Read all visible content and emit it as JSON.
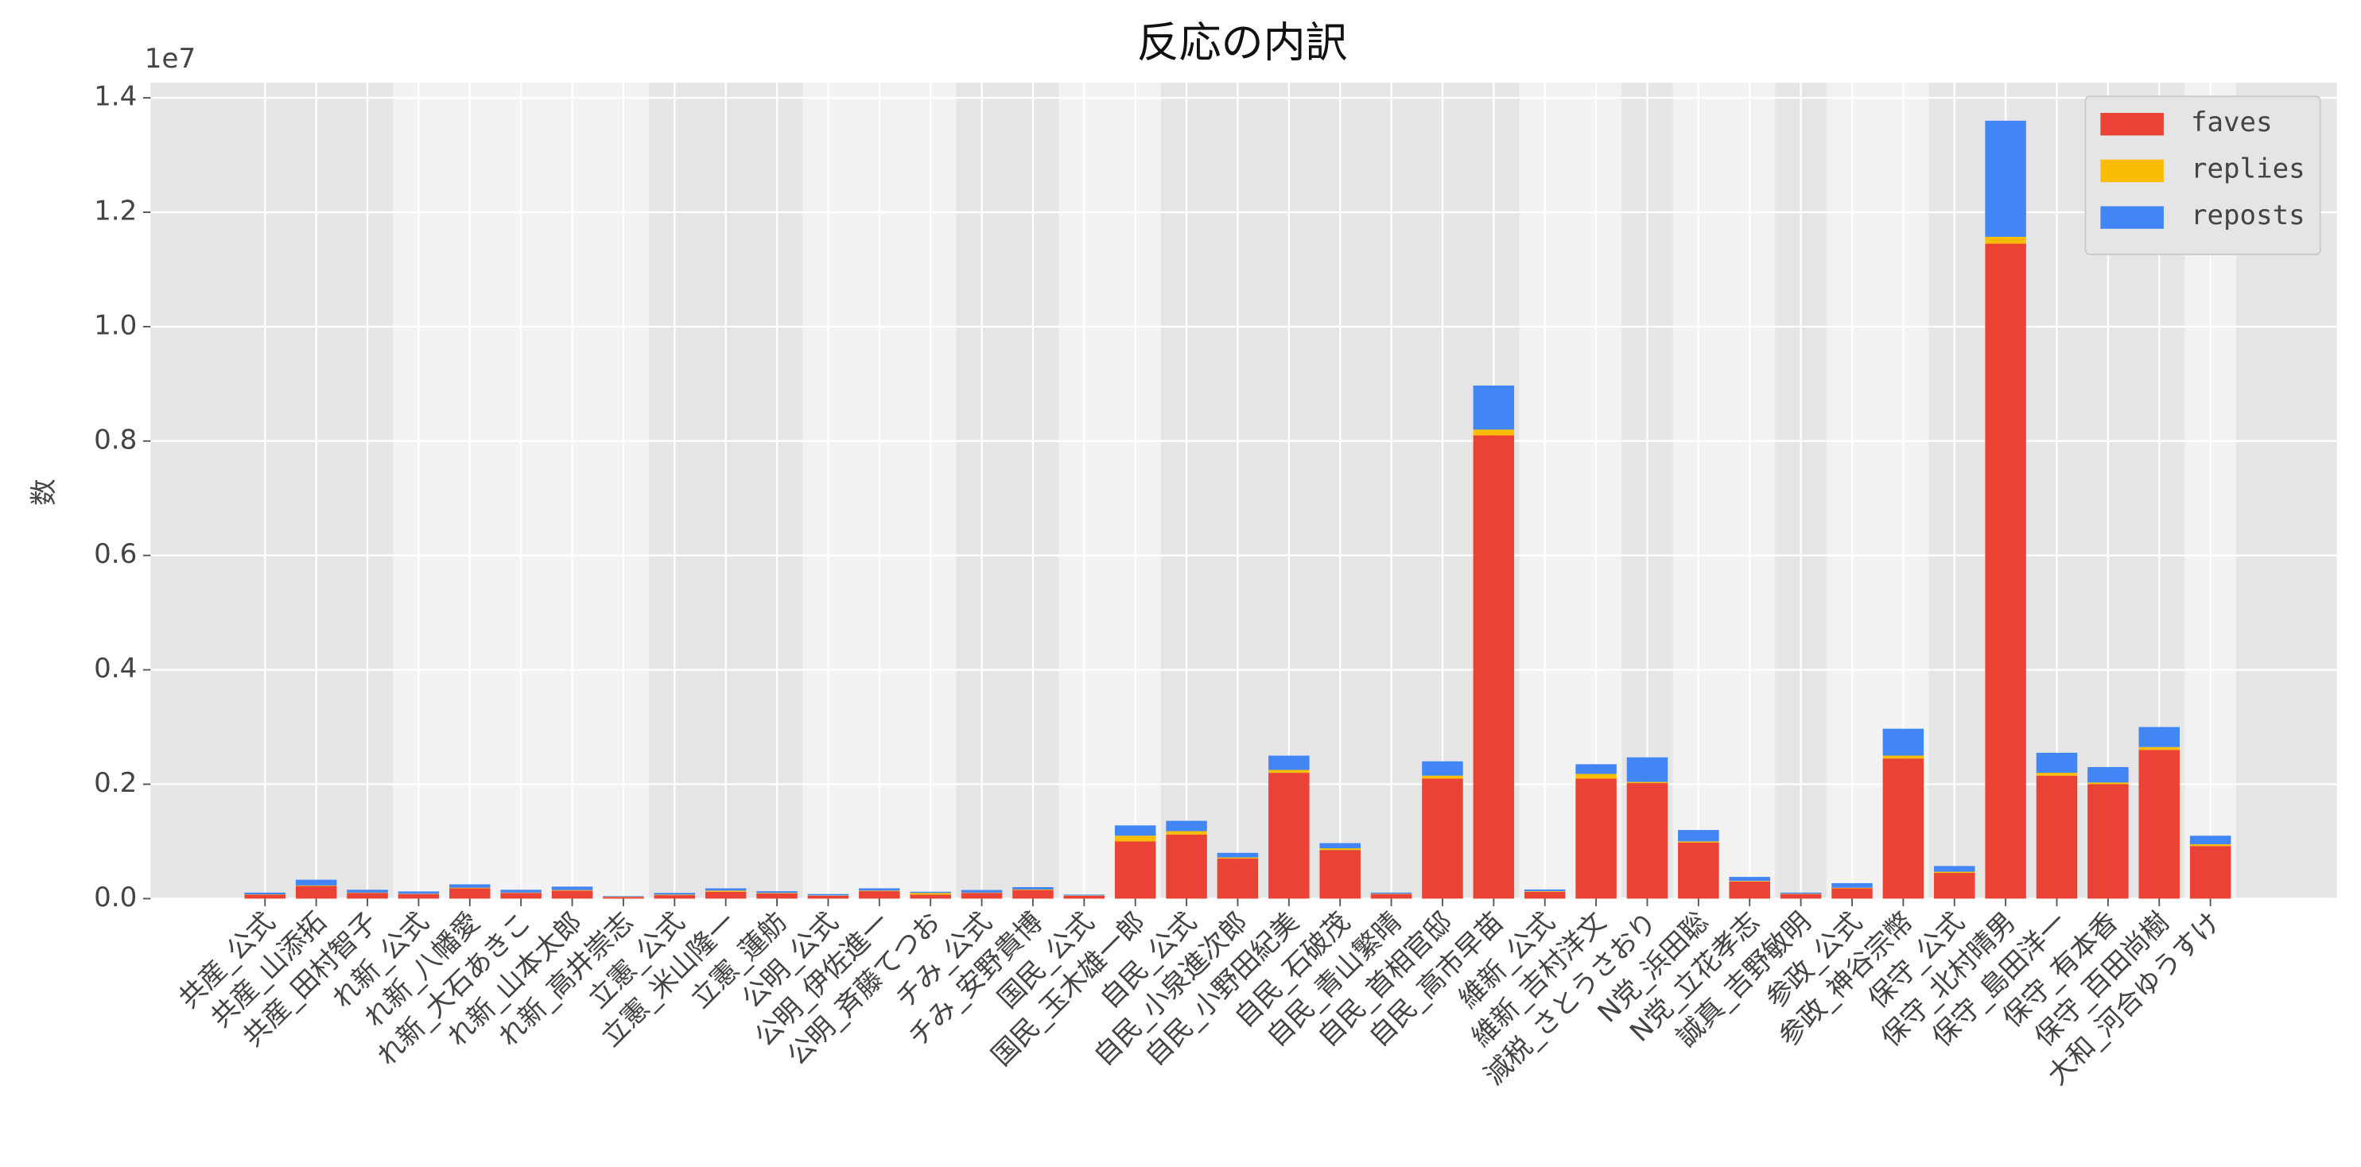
{
  "chart_data": {
    "type": "bar",
    "stacked": true,
    "title": "反応の内訳",
    "y_label": "数",
    "y_offset_label": "1e7",
    "categories": [
      "共産_公式",
      "共産_山添拓",
      "共産_田村智子",
      "れ新_公式",
      "れ新_八幡愛",
      "れ新_大石あきこ",
      "れ新_山本太郎",
      "れ新_高井崇志",
      "立憲_公式",
      "立憲_米山隆一",
      "立憲_蓮舫",
      "公明_公式",
      "公明_伊佐進一",
      "公明_斉藤てつお",
      "チみ_公式",
      "チみ_安野貴博",
      "国民_公式",
      "国民_玉木雄一郎",
      "自民_公式",
      "自民_小泉進次郎",
      "自民_小野田紀美",
      "自民_石破茂",
      "自民_青山繁晴",
      "自民_首相官邸",
      "自民_高市早苗",
      "維新_公式",
      "維新_吉村洋文",
      "減税_さとうさおり",
      "N党_浜田聡",
      "N党_立花孝志",
      "誠真_吉野敏明",
      "参政_公式",
      "参政_神谷宗幣",
      "保守_公式",
      "保守_北村晴男",
      "保守_島田洋一",
      "保守_有本香",
      "保守_百田尚樹",
      "大和_河合ゆうすけ"
    ],
    "series": [
      {
        "name": "faves",
        "color": "#ea4335",
        "values": [
          70000,
          220000,
          100000,
          80000,
          180000,
          100000,
          140000,
          30000,
          60000,
          120000,
          90000,
          50000,
          130000,
          70000,
          100000,
          150000,
          50000,
          1000000,
          1120000,
          700000,
          2200000,
          850000,
          80000,
          2100000,
          8100000,
          120000,
          2100000,
          2020000,
          980000,
          300000,
          80000,
          180000,
          2450000,
          450000,
          11450000,
          2150000,
          2000000,
          2600000,
          920000
        ]
      },
      {
        "name": "replies",
        "color": "#fbbc05",
        "values": [
          5000,
          10000,
          5000,
          5000,
          10000,
          5000,
          10000,
          3000,
          10000,
          20000,
          10000,
          5000,
          10000,
          30000,
          5000,
          10000,
          5000,
          100000,
          60000,
          20000,
          50000,
          30000,
          5000,
          50000,
          100000,
          10000,
          80000,
          20000,
          20000,
          10000,
          5000,
          10000,
          50000,
          20000,
          120000,
          50000,
          30000,
          50000,
          30000
        ]
      },
      {
        "name": "reposts",
        "color": "#4285f4",
        "values": [
          30000,
          100000,
          50000,
          40000,
          60000,
          50000,
          60000,
          10000,
          30000,
          40000,
          30000,
          25000,
          40000,
          20000,
          45000,
          40000,
          15000,
          180000,
          180000,
          80000,
          250000,
          90000,
          20000,
          250000,
          770000,
          30000,
          170000,
          430000,
          200000,
          70000,
          20000,
          80000,
          470000,
          100000,
          2030000,
          350000,
          270000,
          350000,
          150000
        ]
      }
    ],
    "ylim": [
      0,
      14000000
    ],
    "yticks": [
      {
        "value": 0,
        "label": "0.0"
      },
      {
        "value": 2000000,
        "label": "0.2"
      },
      {
        "value": 4000000,
        "label": "0.4"
      },
      {
        "value": 6000000,
        "label": "0.6"
      },
      {
        "value": 8000000,
        "label": "0.8"
      },
      {
        "value": 10000000,
        "label": "1.0"
      },
      {
        "value": 12000000,
        "label": "1.2"
      },
      {
        "value": 14000000,
        "label": "1.4"
      }
    ],
    "grid": true,
    "legend": "upper right"
  }
}
